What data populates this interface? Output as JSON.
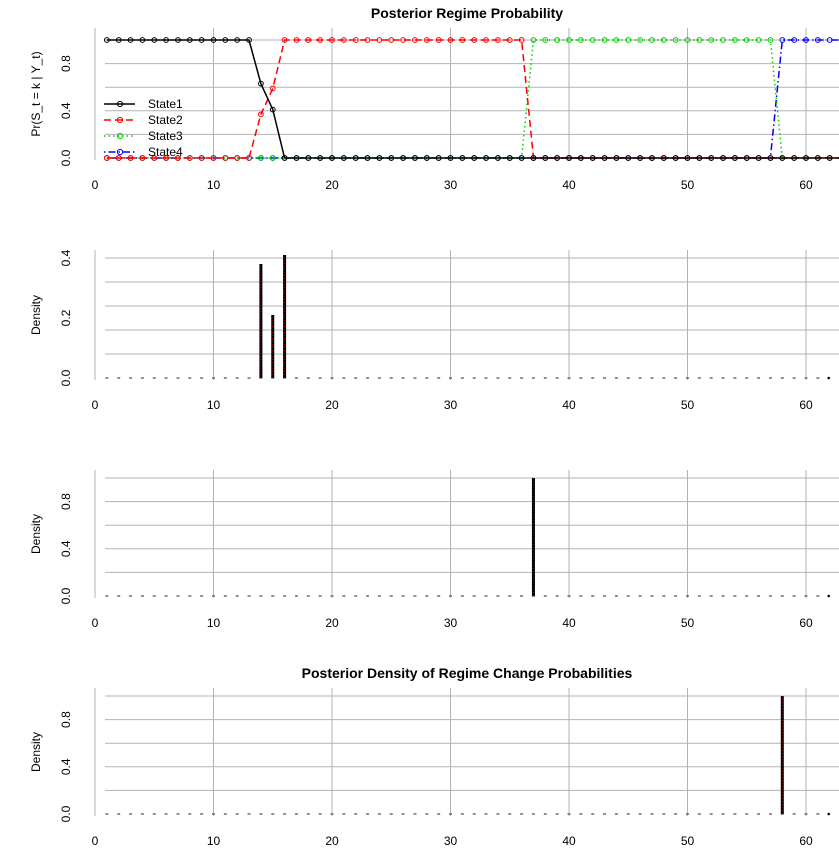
{
  "chart_data": [
    {
      "type": "line",
      "title": "Posterior Regime Probability",
      "ylabel": "Pr(S_t = k | Y_t)",
      "xlabel": "",
      "xlim": [
        0,
        63
      ],
      "ylim": [
        0,
        1
      ],
      "x_ticks": [
        0,
        10,
        20,
        30,
        40,
        50,
        60
      ],
      "y_ticks": [
        "0.0",
        "0.4",
        "0.8"
      ],
      "grid": true,
      "legend_position": "left",
      "x_start": 1,
      "x_end": 63,
      "series": [
        {
          "name": "State1",
          "color": "#000000",
          "line_style": "solid",
          "points": [
            [
              13,
              1
            ],
            [
              14,
              0.63
            ],
            [
              15,
              0.41
            ],
            [
              16,
              0
            ]
          ]
        },
        {
          "name": "State2",
          "color": "#ff0000",
          "line_style": "dashed",
          "points": [
            [
              13,
              0
            ],
            [
              14,
              0.37
            ],
            [
              15,
              0.59
            ],
            [
              16,
              1
            ],
            [
              36,
              1
            ],
            [
              37,
              0
            ]
          ]
        },
        {
          "name": "State3",
          "color": "#00cc00",
          "line_style": "dotted",
          "points": [
            [
              36,
              0
            ],
            [
              37,
              1
            ],
            [
              57,
              1
            ],
            [
              58,
              0
            ]
          ]
        },
        {
          "name": "State4",
          "color": "#0000ff",
          "line_style": "dotdash",
          "points": [
            [
              57,
              0
            ],
            [
              58,
              1
            ]
          ]
        }
      ]
    },
    {
      "type": "bar",
      "title": "",
      "ylabel": "Density",
      "xlabel": "",
      "xlim": [
        0,
        63
      ],
      "ylim": [
        0,
        0.4
      ],
      "x_ticks": [
        0,
        10,
        20,
        30,
        40,
        50,
        60
      ],
      "y_ticks": [
        "0.0",
        "0.2",
        "0.4"
      ],
      "grid": true,
      "spikes": [
        [
          14,
          0.38
        ],
        [
          15,
          0.21
        ],
        [
          16,
          0.41
        ]
      ]
    },
    {
      "type": "bar",
      "title": "",
      "ylabel": "Density",
      "xlabel": "",
      "xlim": [
        0,
        63
      ],
      "ylim": [
        0,
        1
      ],
      "x_ticks": [
        0,
        10,
        20,
        30,
        40,
        50,
        60
      ],
      "y_ticks": [
        "0.0",
        "0.4",
        "0.8"
      ],
      "grid": true,
      "spikes": [
        [
          37,
          1.0
        ]
      ]
    },
    {
      "type": "bar",
      "title": "Posterior Density of Regime Change Probabilities",
      "ylabel": "Density",
      "xlabel": "",
      "xlim": [
        0,
        63
      ],
      "ylim": [
        0,
        1
      ],
      "x_ticks": [
        0,
        10,
        20,
        30,
        40,
        50,
        60
      ],
      "y_ticks": [
        "0.0",
        "0.4",
        "0.8"
      ],
      "grid": true,
      "spikes": [
        [
          58,
          1.0
        ]
      ]
    }
  ]
}
